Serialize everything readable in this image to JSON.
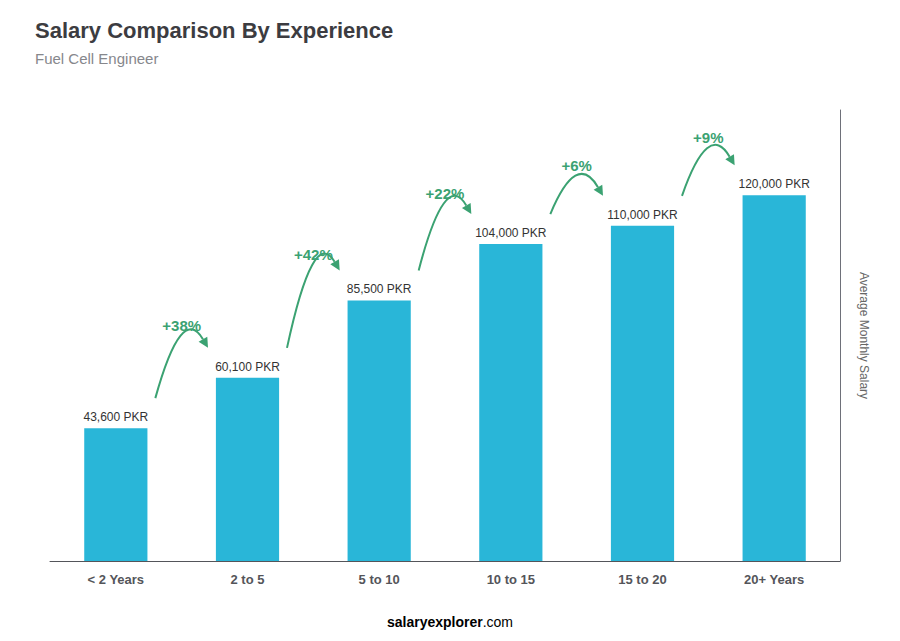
{
  "chart_data": {
    "type": "bar",
    "title": "Salary Comparison By Experience",
    "subtitle": "Fuel Cell Engineer",
    "categories": [
      "< 2 Years",
      "2 to 5",
      "5 to 10",
      "10 to 15",
      "15 to 20",
      "20+ Years"
    ],
    "values": [
      43600,
      60100,
      85500,
      104000,
      110000,
      120000
    ],
    "value_labels": [
      "43,600 PKR",
      "60,100 PKR",
      "85,500 PKR",
      "104,000 PKR",
      "110,000 PKR",
      "120,000 PKR"
    ],
    "data_labels": true,
    "color": "#29b6d8",
    "ylabel": "Average Monthly Salary",
    "ylim": [
      0,
      148000
    ],
    "annotations": [
      "+38%",
      "+42%",
      "+22%",
      "+6%",
      "+9%"
    ],
    "footer": [
      "salary",
      "explorer",
      ".com"
    ],
    "tick_labels": "x",
    "grid": false
  }
}
